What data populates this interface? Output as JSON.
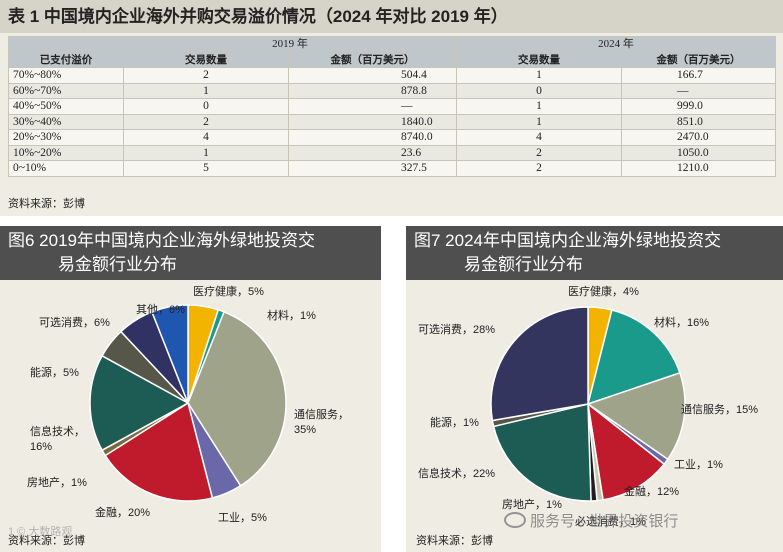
{
  "table": {
    "title": "表 1  中国境内企业海外并购交易溢价情况（2024 年对比 2019 年）",
    "year_a": "2019 年",
    "year_b": "2024 年",
    "col_range": "已支付溢价",
    "col_count": "交易数量",
    "col_amount": "金额（百万美元）",
    "rows": [
      {
        "range": "70%~80%",
        "count_2019": "2",
        "amount_2019": "504.4",
        "count_2024": "1",
        "amount_2024": "166.7"
      },
      {
        "range": "60%~70%",
        "count_2019": "1",
        "amount_2019": "878.8",
        "count_2024": "0",
        "amount_2024": "—"
      },
      {
        "range": "40%~50%",
        "count_2019": "0",
        "amount_2019": "—",
        "count_2024": "1",
        "amount_2024": "999.0"
      },
      {
        "range": "30%~40%",
        "count_2019": "2",
        "amount_2019": "1840.0",
        "count_2024": "1",
        "amount_2024": "851.0"
      },
      {
        "range": "20%~30%",
        "count_2019": "4",
        "amount_2019": "8740.0",
        "count_2024": "4",
        "amount_2024": "2470.0"
      },
      {
        "range": "10%~20%",
        "count_2019": "1",
        "amount_2019": "23.6",
        "count_2024": "2",
        "amount_2024": "1050.0"
      },
      {
        "range": "0~10%",
        "count_2019": "5",
        "amount_2019": "327.5",
        "count_2024": "2",
        "amount_2024": "1210.0"
      }
    ],
    "source": "资料来源：彭博"
  },
  "chart_data": [
    {
      "type": "pie",
      "title_line1": "图6  2019年中国境内企业海外绿地投资交",
      "title_line2": "易金额行业分布",
      "labels": [
        "医疗健康，5%",
        "材料，1%",
        "通信服务，",
        "35%",
        "工业，5%",
        "金融，20%",
        "房地产，1%",
        "信息技术，",
        "16%",
        "能源，5%",
        "可选消费，6%",
        "其他，6%"
      ],
      "slices": [
        {
          "name": "医疗健康",
          "value": 5,
          "color": "#f2b400"
        },
        {
          "name": "材料",
          "value": 1,
          "color": "#1a9a8a"
        },
        {
          "name": "通信服务",
          "value": 35,
          "color": "#9ea38a"
        },
        {
          "name": "工业",
          "value": 5,
          "color": "#6a68a8"
        },
        {
          "name": "金融",
          "value": 20,
          "color": "#bf1b2c"
        },
        {
          "name": "房地产",
          "value": 1,
          "color": "#7a6a40"
        },
        {
          "name": "信息技术",
          "value": 16,
          "color": "#1d5c55"
        },
        {
          "name": "能源",
          "value": 5,
          "color": "#56574a"
        },
        {
          "name": "可选消费",
          "value": 6,
          "color": "#2f3262"
        },
        {
          "name": "其他",
          "value": 6,
          "color": "#1e56b0"
        }
      ],
      "source": "资料来源：彭博"
    },
    {
      "type": "pie",
      "title_line1": "图7  2024年中国境内企业海外绿地投资交",
      "title_line2": "易金额行业分布",
      "labels": [
        "医疗健康，4%",
        "材料，16%",
        "通信服务，15%",
        "工业，1%",
        "金融，12%",
        "必选消费，1%",
        "房地产，1%",
        "信息技术，22%",
        "能源，1%",
        "可选消费，28%"
      ],
      "slices": [
        {
          "name": "医疗健康",
          "value": 4,
          "color": "#f2b400"
        },
        {
          "name": "材料",
          "value": 16,
          "color": "#1a9a8a"
        },
        {
          "name": "通信服务",
          "value": 15,
          "color": "#9ea38a"
        },
        {
          "name": "工业",
          "value": 1,
          "color": "#6a68a8"
        },
        {
          "name": "金融",
          "value": 12,
          "color": "#bf1b2c"
        },
        {
          "name": "必选消费",
          "value": 1,
          "color": "#c8c4b0"
        },
        {
          "name": "房地产",
          "value": 1,
          "color": "#1e1e1e"
        },
        {
          "name": "信息技术",
          "value": 22,
          "color": "#1d5c55"
        },
        {
          "name": "能源",
          "value": 1,
          "color": "#56574a"
        },
        {
          "name": "可选消费",
          "value": 28,
          "color": "#34355f"
        }
      ],
      "source": "资料来源：彭博"
    }
  ],
  "watermark": {
    "bottom": "服务号 · 世界投资银行",
    "left": "1 ©   大数路观"
  }
}
